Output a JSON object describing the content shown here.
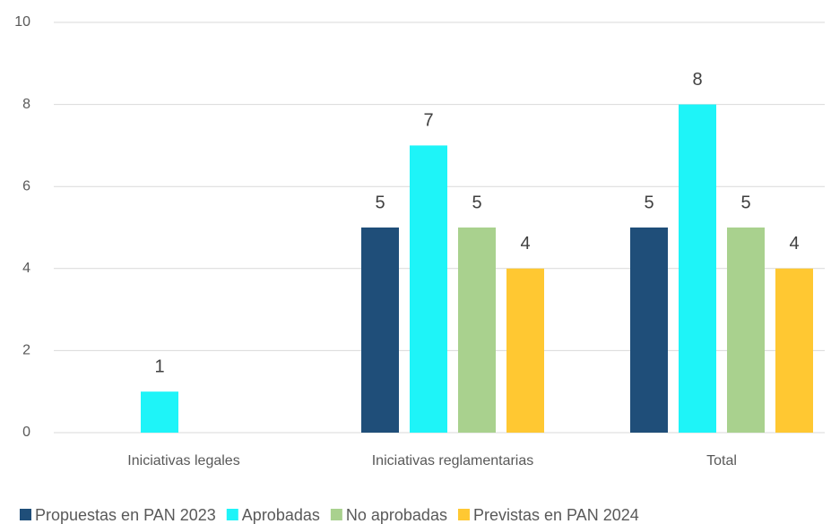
{
  "chart_data": {
    "type": "bar",
    "categories": [
      "Iniciativas legales",
      "Iniciativas reglamentarias",
      "Total"
    ],
    "series": [
      {
        "name": "Propuestas en PAN 2023",
        "color": "#1f4e79",
        "values": [
          null,
          5,
          5
        ]
      },
      {
        "name": "Aprobadas",
        "color": "#1ef4f8",
        "values": [
          1,
          7,
          8
        ]
      },
      {
        "name": "No aprobadas",
        "color": "#a9d18e",
        "values": [
          null,
          5,
          5
        ]
      },
      {
        "name": "Previstas en PAN 2024",
        "color": "#ffc832",
        "values": [
          null,
          4,
          4
        ]
      }
    ],
    "ylim": [
      0,
      10
    ],
    "yticks": [
      0,
      2,
      4,
      6,
      8,
      10
    ],
    "grid": true,
    "legend": "bottom"
  }
}
